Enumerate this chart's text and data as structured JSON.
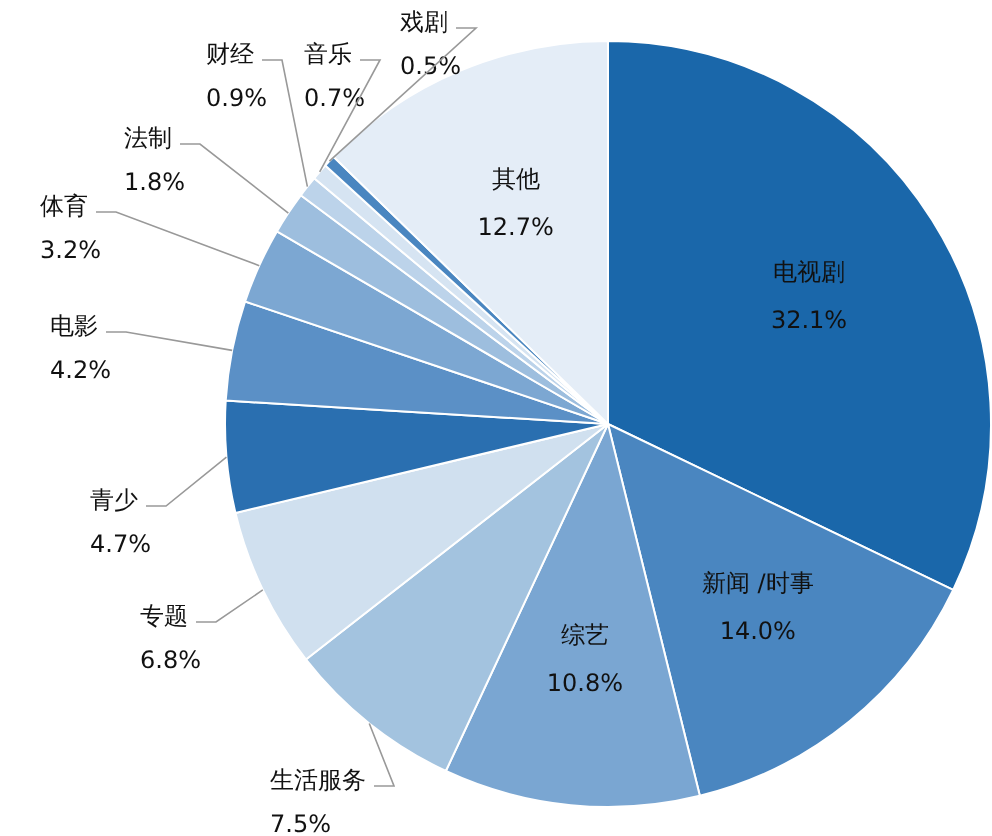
{
  "chart_data": {
    "type": "pie",
    "categories": [
      "电视剧",
      "新闻 /时事",
      "综艺",
      "生活服务",
      "专题",
      "青少",
      "电影",
      "体育",
      "法制",
      "财经",
      "音乐",
      "戏剧",
      "其他"
    ],
    "values": [
      32.1,
      14.0,
      10.8,
      7.5,
      6.8,
      4.7,
      4.2,
      3.2,
      1.8,
      0.9,
      0.7,
      0.5,
      12.7
    ],
    "value_labels": [
      "32.1%",
      "14.0%",
      "10.8%",
      "7.5%",
      "6.8%",
      "4.7%",
      "4.2%",
      "3.2%",
      "1.8%",
      "0.9%",
      "0.7%",
      "0.5%",
      "12.7%"
    ],
    "colors": [
      "#1a67aa",
      "#4a86c0",
      "#7aa6d2",
      "#a3c3df",
      "#d0e0ef",
      "#2a6fb0",
      "#5b90c6",
      "#7ca7d2",
      "#9dbede",
      "#bcd3ea",
      "#d6e4f2",
      "#4a86c0",
      "#e4edf7"
    ]
  }
}
